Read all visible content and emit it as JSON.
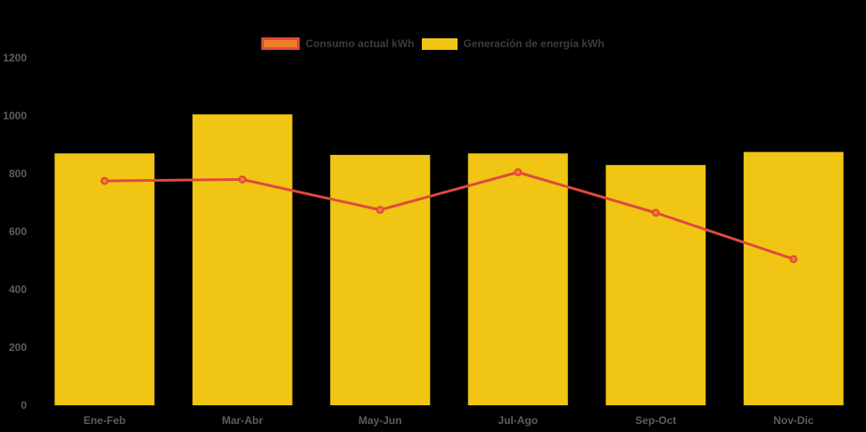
{
  "background": "#000000",
  "legend": {
    "text_color": "#3C3C3C",
    "items": [
      {
        "label": "Consumo actual kWh",
        "type": "line",
        "fill": "#EE7E2D",
        "border": "#E1493C"
      },
      {
        "label": "Generación de energía kWh",
        "type": "bar",
        "fill": "#F0C514",
        "border": "#F0C514"
      }
    ]
  },
  "chart_data": {
    "type": "combo",
    "categories": [
      "Ene-Feb",
      "Mar-Abr",
      "May-Jun",
      "Jul-Ago",
      "Sep-Oct",
      "Nov-Dic"
    ],
    "series": [
      {
        "name": "Generación de energía kWh",
        "type": "bar",
        "color": "#F0C514",
        "values": [
          870,
          1005,
          865,
          870,
          830,
          875
        ]
      },
      {
        "name": "Consumo actual kWh",
        "type": "line",
        "color": "#E1493C",
        "point_fill": "#EE7E2D",
        "values": [
          775,
          780,
          675,
          805,
          665,
          505
        ]
      }
    ],
    "title": "",
    "xlabel": "",
    "ylabel": "",
    "ylim": [
      0,
      1200
    ],
    "yticks": [
      0,
      200,
      400,
      600,
      800,
      1000,
      1200
    ],
    "grid": false,
    "legend_position": "top",
    "axis_label_color": "#5D5D5D"
  }
}
